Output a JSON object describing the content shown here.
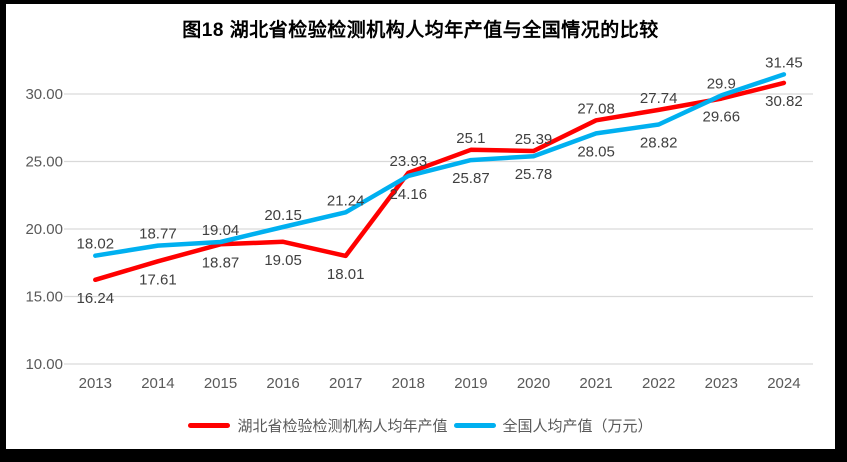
{
  "window": {
    "frame_color": "#000000",
    "background_color": "#FFFFFF"
  },
  "chart_data": {
    "type": "line",
    "title": "图18 湖北省检验检测机构人均年产值与全国情况的比较",
    "categories": [
      "2013",
      "2014",
      "2015",
      "2016",
      "2017",
      "2018",
      "2019",
      "2020",
      "2021",
      "2022",
      "2023",
      "2024"
    ],
    "series": [
      {
        "name": "湖北省检验检测机构人均年产值",
        "color": "#FF0000",
        "label_position": "below",
        "values": [
          16.24,
          17.61,
          18.87,
          19.05,
          18.01,
          24.16,
          25.87,
          25.78,
          28.05,
          28.82,
          29.66,
          30.82
        ],
        "labels": [
          "16.24",
          "17.61",
          "18.87",
          "19.05",
          "18.01",
          "24.16",
          "25.87",
          "25.78",
          "28.05",
          "28.82",
          "29.66",
          "30.82"
        ]
      },
      {
        "name": "全国人均产值（万元）",
        "color": "#00B0F0",
        "label_position": "above",
        "values": [
          18.02,
          18.77,
          19.04,
          20.15,
          21.24,
          23.93,
          25.1,
          25.39,
          27.08,
          27.74,
          29.9,
          31.45
        ],
        "labels": [
          "18.02",
          "18.77",
          "19.04",
          "20.15",
          "21.24",
          "23.93",
          "25.1",
          "25.39",
          "27.08",
          "27.74",
          "29.9",
          "31.45"
        ]
      }
    ],
    "y_axis": {
      "ticks": [
        "30.00",
        "25.00",
        "20.00",
        "15.00",
        "10.00"
      ],
      "range": [
        10,
        32.5
      ],
      "major_unit": 5
    },
    "grid": true,
    "legend_position": "bottom",
    "colors": {
      "gridline": "#D9D9D9",
      "axis_text": "#595959",
      "data_label_text": "#404040",
      "title_text": "#000000"
    }
  }
}
